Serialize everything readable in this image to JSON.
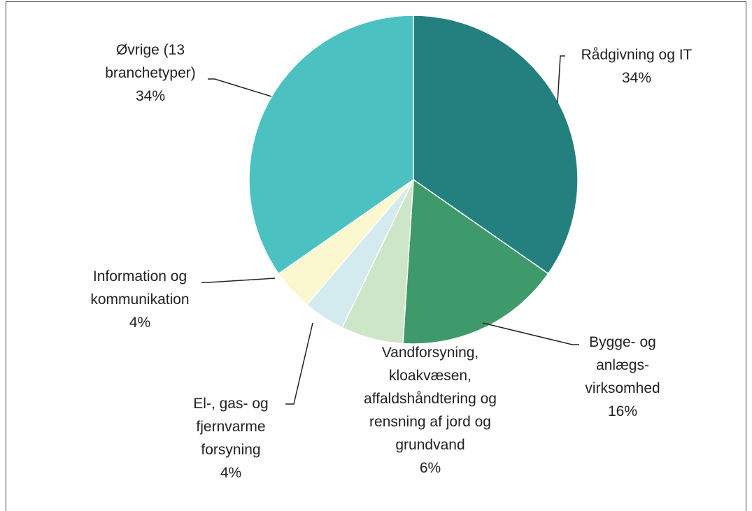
{
  "chart_data": {
    "type": "pie",
    "categories": [
      "Rådgivning og IT",
      "Bygge- og anlægs-virksomhed",
      "Vandforsyning, kloakvæsen, affaldshåndtering og rensning af jord og grundvand",
      "El-, gas- og fjernvarme forsyning",
      "Information og kommunikation",
      "Øvrige (13 branchetyper)"
    ],
    "values": [
      34,
      16,
      6,
      4,
      4,
      34
    ],
    "value_labels": [
      "34%",
      "16%",
      "6%",
      "4%",
      "4%",
      "34%"
    ],
    "colors": [
      "#23807f",
      "#3e9a6a",
      "#cde6c7",
      "#d3ebef",
      "#fbf8d0",
      "#4bc1c1"
    ]
  }
}
